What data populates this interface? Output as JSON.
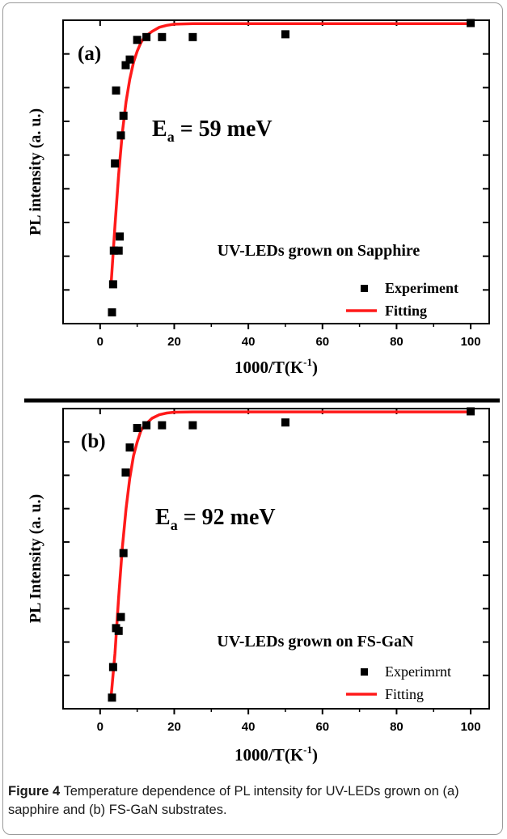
{
  "caption": {
    "label": "Figure 4",
    "text": "Temperature dependence of PL intensity for UV-LEDs grown on (a) sapphire and (b) FS-GaN substrates."
  },
  "chart_data": [
    {
      "type": "scatter",
      "panel_label": "(a)",
      "annotation": "UV-LEDs grown on Sapphire",
      "activation_energy_prefix": "E",
      "activation_energy_subscript": "a",
      "activation_energy_value": " = 59 meV",
      "xlabel_main": "1000/T(K",
      "xlabel_sup": "-1",
      "xlabel_close": ")",
      "ylabel": "PL intensity (a. u.)",
      "xlim": [
        -10,
        105
      ],
      "ylim": [
        0,
        1.08
      ],
      "xticks": [
        0,
        20,
        40,
        60,
        80,
        100
      ],
      "xtick_labels": [
        "0",
        "20",
        "40",
        "60",
        "80",
        "100"
      ],
      "yticks_count": 8,
      "legend_position": "bottom-right",
      "series": [
        {
          "name": "Experiment",
          "kind": "markers",
          "color": "#000000",
          "x": [
            3.2,
            3.5,
            3.7,
            4.0,
            4.3,
            5.0,
            5.3,
            5.6,
            6.3,
            6.9,
            8.0,
            10.0,
            12.5,
            16.7,
            25.0,
            50.0,
            100.0
          ],
          "y": [
            0.04,
            0.14,
            0.26,
            0.57,
            0.83,
            0.26,
            0.31,
            0.67,
            0.74,
            0.92,
            0.94,
            1.01,
            1.02,
            1.02,
            1.02,
            1.03,
            1.07
          ]
        },
        {
          "name": "Fitting",
          "kind": "line",
          "color": "#ff1a1a",
          "x": [
            3.0,
            4.0,
            5.0,
            6.0,
            7.0,
            8.0,
            9.0,
            10.0,
            11.0,
            12.0,
            14.0,
            16.0,
            18.0,
            20.0,
            25.0,
            30.0,
            40.0,
            60.0,
            80.0,
            100.0
          ],
          "y": [
            0.15,
            0.35,
            0.53,
            0.68,
            0.79,
            0.87,
            0.93,
            0.97,
            1.0,
            1.02,
            1.04,
            1.055,
            1.062,
            1.066,
            1.068,
            1.068,
            1.068,
            1.068,
            1.068,
            1.068
          ]
        }
      ]
    },
    {
      "type": "scatter",
      "panel_label": "(b)",
      "annotation": "UV-LEDs grown on FS-GaN",
      "activation_energy_prefix": "E",
      "activation_energy_subscript": "a",
      "activation_energy_value": " = 92 meV",
      "xlabel_main": "1000/T(K",
      "xlabel_sup": "-1",
      "xlabel_close": ")",
      "ylabel": "PL Intensity (a. u.)",
      "xlim": [
        -10,
        105
      ],
      "ylim": [
        0,
        1.08
      ],
      "xticks": [
        0,
        20,
        40,
        60,
        80,
        100
      ],
      "xtick_labels": [
        "0",
        "20",
        "40",
        "60",
        "80",
        "100"
      ],
      "yticks_count": 8,
      "legend_position": "bottom-right",
      "series": [
        {
          "name": "Experimrnt",
          "kind": "markers",
          "color": "#000000",
          "x": [
            3.2,
            3.5,
            4.3,
            5.0,
            5.6,
            6.3,
            6.9,
            8.0,
            10.0,
            12.5,
            16.7,
            25.0,
            50.0,
            100.0
          ],
          "y": [
            0.04,
            0.15,
            0.29,
            0.28,
            0.33,
            0.56,
            0.85,
            0.94,
            1.01,
            1.02,
            1.02,
            1.02,
            1.03,
            1.07
          ]
        },
        {
          "name": "Fitting",
          "kind": "line",
          "color": "#ff1a1a",
          "x": [
            3.0,
            4.0,
            5.0,
            6.0,
            7.0,
            8.0,
            9.0,
            10.0,
            11.0,
            12.0,
            14.0,
            16.0,
            18.0,
            20.0,
            25.0,
            30.0,
            40.0,
            60.0,
            80.0,
            100.0
          ],
          "y": [
            0.05,
            0.2,
            0.4,
            0.58,
            0.72,
            0.83,
            0.91,
            0.96,
            1.0,
            1.02,
            1.045,
            1.058,
            1.064,
            1.067,
            1.068,
            1.068,
            1.068,
            1.068,
            1.068,
            1.068
          ]
        }
      ]
    }
  ]
}
